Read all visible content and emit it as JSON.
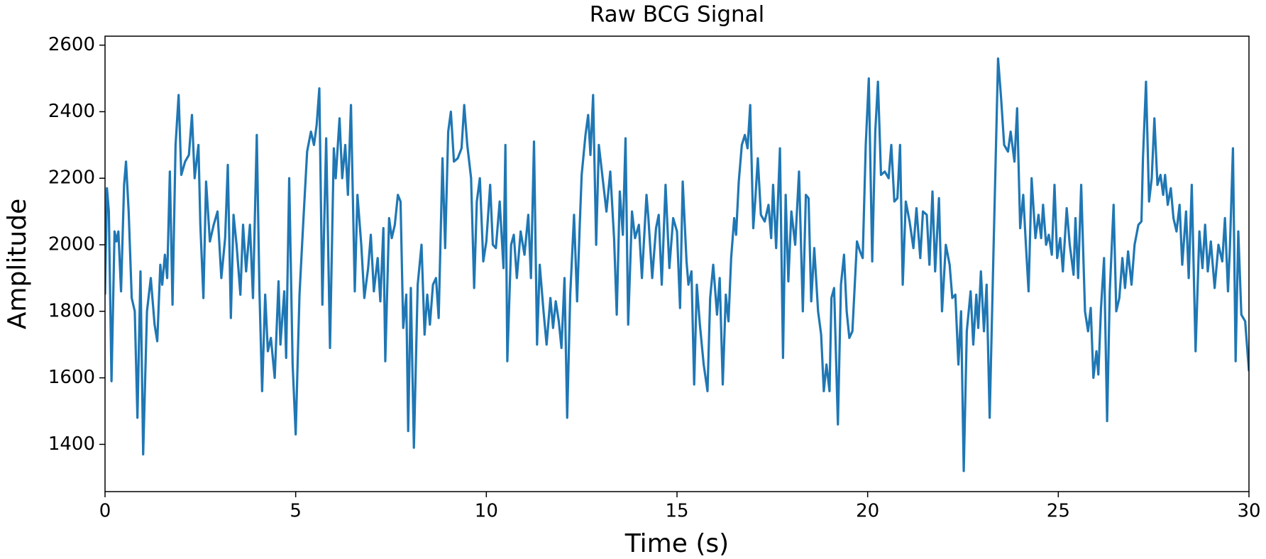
{
  "chart_data": {
    "type": "line",
    "title": "Raw BCG Signal",
    "xlabel": "Time (s)",
    "ylabel": "Amplitude",
    "color": "#1f77b4",
    "xlim": [
      0,
      30
    ],
    "xticks": [
      0,
      5,
      10,
      15,
      20,
      25,
      30
    ],
    "ylim": [
      1258,
      2627
    ],
    "yticks": [
      1400,
      1600,
      1800,
      2000,
      2200,
      2400,
      2600
    ],
    "x": [
      0,
      0.05,
      0.1,
      0.17,
      0.25,
      0.3,
      0.35,
      0.42,
      0.5,
      0.55,
      0.62,
      0.7,
      0.78,
      0.85,
      0.93,
      1.0,
      1.1,
      1.2,
      1.3,
      1.37,
      1.45,
      1.5,
      1.57,
      1.63,
      1.7,
      1.77,
      1.85,
      1.93,
      2.0,
      2.1,
      2.2,
      2.28,
      2.35,
      2.45,
      2.5,
      2.58,
      2.65,
      2.75,
      2.85,
      2.95,
      3.05,
      3.15,
      3.22,
      3.3,
      3.37,
      3.45,
      3.55,
      3.62,
      3.7,
      3.8,
      3.88,
      3.98,
      4.05,
      4.12,
      4.2,
      4.27,
      4.35,
      4.45,
      4.55,
      4.6,
      4.7,
      4.75,
      4.83,
      4.92,
      5.0,
      5.1,
      5.2,
      5.3,
      5.4,
      5.48,
      5.55,
      5.62,
      5.7,
      5.8,
      5.9,
      6.0,
      6.05,
      6.15,
      6.22,
      6.3,
      6.37,
      6.45,
      6.55,
      6.62,
      6.72,
      6.8,
      6.9,
      6.97,
      7.05,
      7.15,
      7.22,
      7.3,
      7.35,
      7.45,
      7.52,
      7.6,
      7.68,
      7.75,
      7.82,
      7.9,
      7.95,
      8.02,
      8.1,
      8.2,
      8.3,
      8.38,
      8.45,
      8.52,
      8.6,
      8.68,
      8.75,
      8.85,
      8.92,
      9.0,
      9.07,
      9.15,
      9.25,
      9.35,
      9.42,
      9.5,
      9.6,
      9.68,
      9.75,
      9.83,
      9.92,
      10.0,
      10.1,
      10.17,
      10.25,
      10.35,
      10.45,
      10.5,
      10.55,
      10.65,
      10.72,
      10.8,
      10.9,
      11.0,
      11.1,
      11.17,
      11.25,
      11.33,
      11.4,
      11.5,
      11.58,
      11.68,
      11.75,
      11.82,
      11.9,
      11.97,
      12.05,
      12.12,
      12.2,
      12.3,
      12.38,
      12.45,
      12.5,
      12.6,
      12.67,
      12.73,
      12.8,
      12.88,
      12.95,
      13.05,
      13.15,
      13.25,
      13.35,
      13.42,
      13.5,
      13.58,
      13.65,
      13.72,
      13.82,
      13.9,
      14.0,
      14.08,
      14.2,
      14.25,
      14.35,
      14.45,
      14.52,
      14.6,
      14.7,
      14.8,
      14.9,
      15.0,
      15.08,
      15.15,
      15.25,
      15.3,
      15.38,
      15.45,
      15.52,
      15.6,
      15.7,
      15.8,
      15.87,
      15.95,
      16.05,
      16.12,
      16.2,
      16.28,
      16.35,
      16.42,
      16.5,
      16.55,
      16.62,
      16.7,
      16.78,
      16.85,
      16.92,
      17.0,
      17.05,
      17.12,
      17.2,
      17.3,
      17.4,
      17.47,
      17.52,
      17.6,
      17.7,
      17.78,
      17.85,
      17.92,
      18.0,
      18.1,
      18.2,
      18.3,
      18.38,
      18.45,
      18.52,
      18.6,
      18.7,
      18.78,
      18.85,
      18.92,
      19.0,
      19.05,
      19.12,
      19.22,
      19.3,
      19.38,
      19.45,
      19.52,
      19.6,
      19.72,
      19.8,
      19.87,
      19.95,
      20.03,
      20.12,
      20.2,
      20.27,
      20.35,
      20.45,
      20.55,
      20.62,
      20.7,
      20.78,
      20.85,
      20.92,
      21.0,
      21.1,
      21.2,
      21.28,
      21.38,
      21.45,
      21.55,
      21.62,
      21.7,
      21.77,
      21.87,
      21.95,
      22.05,
      22.15,
      22.22,
      22.3,
      22.38,
      22.45,
      22.52,
      22.6,
      22.7,
      22.77,
      22.85,
      22.9,
      22.97,
      23.05,
      23.12,
      23.2,
      23.3,
      23.42,
      23.5,
      23.58,
      23.68,
      23.75,
      23.85,
      23.92,
      24.0,
      24.08,
      24.15,
      24.22,
      24.3,
      24.4,
      24.48,
      24.55,
      24.6,
      24.68,
      24.75,
      24.83,
      24.9,
      24.97,
      25.05,
      25.12,
      25.22,
      25.3,
      25.4,
      25.45,
      25.52,
      25.6,
      25.7,
      25.78,
      25.85,
      25.92,
      26.0,
      26.05,
      26.12,
      26.2,
      26.28,
      26.35,
      26.45,
      26.52,
      26.6,
      26.68,
      26.75,
      26.83,
      26.92,
      27.0,
      27.1,
      27.18,
      27.22,
      27.3,
      27.38,
      27.45,
      27.52,
      27.6,
      27.68,
      27.75,
      27.8,
      27.87,
      27.95,
      28.02,
      28.1,
      28.18,
      28.25,
      28.35,
      28.42,
      28.5,
      28.6,
      28.7,
      28.78,
      28.85,
      28.92,
      29.0,
      29.1,
      29.2,
      29.3,
      29.37,
      29.45,
      29.5,
      29.58,
      29.65,
      29.72,
      29.8,
      29.9,
      30.0
    ],
    "values": [
      1850,
      2170,
      2100,
      1590,
      2040,
      2010,
      2040,
      1860,
      2180,
      2250,
      2100,
      1840,
      1800,
      1480,
      1920,
      1370,
      1800,
      1900,
      1760,
      1710,
      1940,
      1880,
      1970,
      1900,
      2220,
      1820,
      2300,
      2450,
      2210,
      2250,
      2270,
      2390,
      2200,
      2300,
      2060,
      1840,
      2190,
      2010,
      2060,
      2100,
      1900,
      2020,
      2240,
      1780,
      2090,
      2000,
      1850,
      2060,
      1920,
      2060,
      1840,
      2330,
      1860,
      1560,
      1850,
      1680,
      1720,
      1600,
      1890,
      1700,
      1860,
      1660,
      2200,
      1640,
      1430,
      1850,
      2070,
      2280,
      2340,
      2300,
      2360,
      2470,
      1820,
      2320,
      1690,
      2290,
      2200,
      2380,
      2200,
      2300,
      2150,
      2420,
      1860,
      2150,
      2000,
      1840,
      1930,
      2030,
      1860,
      1960,
      1830,
      2050,
      1650,
      2080,
      2020,
      2060,
      2150,
      2130,
      1750,
      1850,
      1440,
      1870,
      1390,
      1880,
      2000,
      1730,
      1850,
      1760,
      1880,
      1900,
      1780,
      2260,
      1990,
      2340,
      2400,
      2250,
      2260,
      2290,
      2420,
      2300,
      2200,
      1870,
      2130,
      2200,
      1950,
      2010,
      2180,
      2000,
      1990,
      2130,
      1930,
      2300,
      1650,
      2000,
      2030,
      1900,
      2040,
      1970,
      2090,
      1900,
      2310,
      1700,
      1940,
      1800,
      1700,
      1840,
      1750,
      1830,
      1770,
      1690,
      1900,
      1480,
      1850,
      2090,
      1830,
      2060,
      2210,
      2330,
      2390,
      2270,
      2450,
      2000,
      2300,
      2200,
      2100,
      2220,
      2020,
      1790,
      2160,
      2030,
      2320,
      1760,
      2100,
      2020,
      2060,
      1900,
      2150,
      2080,
      1900,
      2050,
      2090,
      1880,
      2180,
      1930,
      2080,
      2040,
      1810,
      2190,
      1950,
      1880,
      1920,
      1580,
      1880,
      1760,
      1640,
      1560,
      1840,
      1940,
      1790,
      1900,
      1580,
      1850,
      1770,
      1960,
      2080,
      2030,
      2190,
      2300,
      2330,
      2290,
      2420,
      2050,
      2130,
      2260,
      2090,
      2070,
      2120,
      2020,
      2180,
      1990,
      2290,
      1660,
      2150,
      1890,
      2100,
      2000,
      2220,
      1800,
      2150,
      2140,
      1830,
      1990,
      1800,
      1730,
      1560,
      1640,
      1560,
      1840,
      1870,
      1460,
      1880,
      1970,
      1800,
      1720,
      1740,
      2010,
      1980,
      1960,
      2300,
      2500,
      1950,
      2340,
      2490,
      2210,
      2220,
      2200,
      2300,
      2130,
      2140,
      2300,
      1880,
      2130,
      2070,
      1990,
      2110,
      1960,
      2100,
      2090,
      1940,
      2160,
      1920,
      2140,
      1800,
      2000,
      1940,
      1840,
      1850,
      1640,
      1800,
      1320,
      1740,
      1860,
      1700,
      1850,
      1750,
      1920,
      1740,
      1880,
      1480,
      1980,
      2560,
      2440,
      2300,
      2280,
      2340,
      2250,
      2410,
      2050,
      2150,
      2000,
      1860,
      2200,
      2020,
      2090,
      2020,
      2120,
      2000,
      2030,
      1970,
      2180,
      1960,
      2020,
      1920,
      2110,
      2000,
      1910,
      2080,
      1900,
      2180,
      1800,
      1740,
      1810,
      1600,
      1680,
      1610,
      1810,
      1960,
      1470,
      1860,
      2120,
      1800,
      1840,
      1960,
      1870,
      1980,
      1880,
      2000,
      2060,
      2070,
      2260,
      2490,
      2130,
      2200,
      2380,
      2180,
      2210,
      2150,
      2210,
      2120,
      2170,
      2080,
      2040,
      2120,
      1940,
      2100,
      1900,
      2180,
      1680,
      2040,
      1930,
      2060,
      1920,
      2010,
      1870,
      2000,
      1950,
      2080,
      1860,
      1990,
      2290,
      1650,
      2040,
      1790,
      1770,
      1620
    ]
  }
}
